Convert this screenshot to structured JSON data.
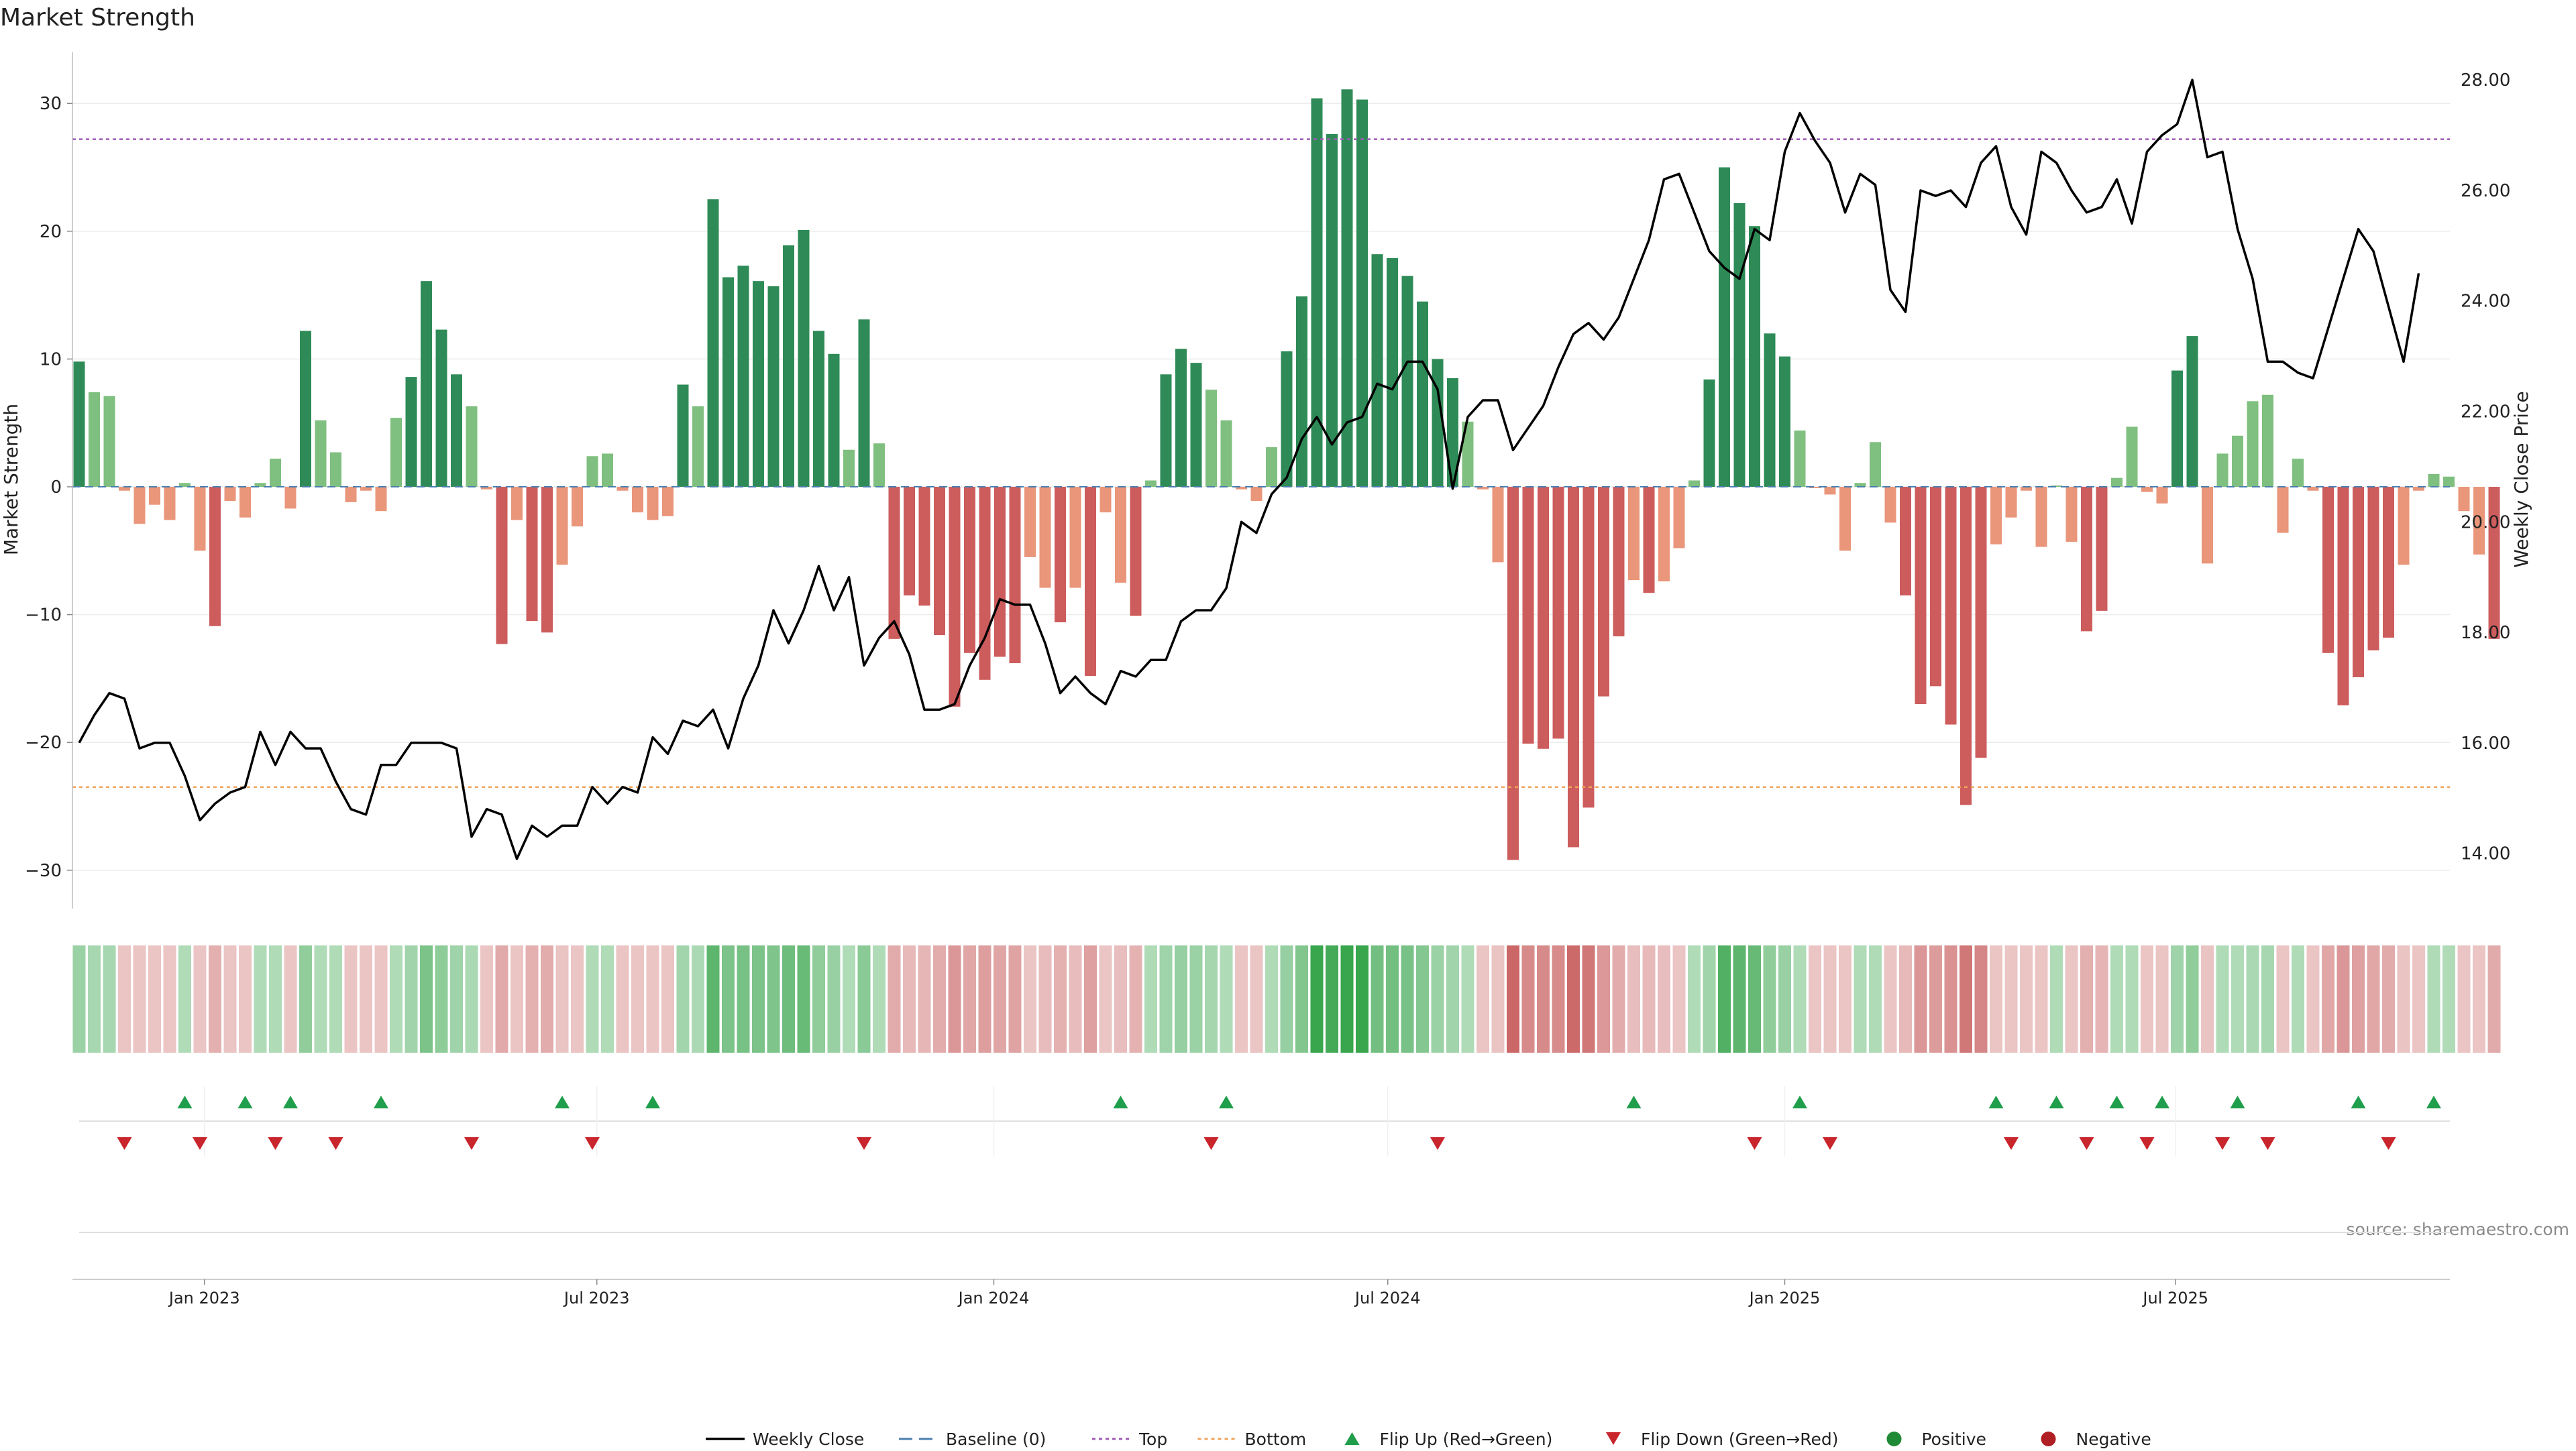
{
  "chart_data": {
    "type": "bar",
    "title": "Market Strength",
    "ylabel_left": "Market Strength",
    "ylabel_right": "Weekly Close Price",
    "source": "source: sharemaestro.com",
    "ylim_left": [
      -33,
      34
    ],
    "ylim_right": [
      13,
      28.5
    ],
    "yticks_left": [
      {
        "v": 30,
        "t": "30"
      },
      {
        "v": 20,
        "t": "20"
      },
      {
        "v": 10,
        "t": "10"
      },
      {
        "v": 0,
        "t": "0"
      },
      {
        "v": -10,
        "t": "−10"
      },
      {
        "v": -20,
        "t": "−20"
      },
      {
        "v": -30,
        "t": "−30"
      }
    ],
    "yticks_right": [
      {
        "v": 28,
        "t": "28.00"
      },
      {
        "v": 26,
        "t": "26.00"
      },
      {
        "v": 24,
        "t": "24.00"
      },
      {
        "v": 22,
        "t": "22.00"
      },
      {
        "v": 20,
        "t": "20.00"
      },
      {
        "v": 18,
        "t": "18.00"
      },
      {
        "v": 16,
        "t": "16.00"
      },
      {
        "v": 14,
        "t": "14.00"
      }
    ],
    "xticks": [
      {
        "i": 8.3,
        "t": "Jan 2023"
      },
      {
        "i": 34.3,
        "t": "Jul 2023"
      },
      {
        "i": 60.6,
        "t": "Jan 2024"
      },
      {
        "i": 86.7,
        "t": "Jul 2024"
      },
      {
        "i": 113,
        "t": "Jan 2025"
      },
      {
        "i": 138.9,
        "t": "Jul 2025"
      }
    ],
    "top_level": 27.2,
    "bottom_level": -23.5,
    "strength": [
      9.8,
      7.4,
      7.1,
      -0.3,
      -2.9,
      -1.4,
      -2.6,
      0.3,
      -5,
      -10.9,
      -1.1,
      -2.4,
      0.3,
      2.2,
      -1.7,
      12.2,
      5.2,
      2.7,
      -1.2,
      -0.3,
      -1.9,
      5.4,
      8.6,
      16.1,
      12.3,
      8.8,
      6.3,
      -0.2,
      -12.3,
      -2.6,
      -10.5,
      -11.4,
      -6.1,
      -3.1,
      2.4,
      2.6,
      -0.3,
      -2,
      -2.6,
      -2.3,
      8,
      6.3,
      22.5,
      16.4,
      17.3,
      16.1,
      15.7,
      18.9,
      20.1,
      12.2,
      10.4,
      2.9,
      13.1,
      3.4,
      -11.9,
      -8.5,
      -9.3,
      -11.6,
      -17.2,
      -13,
      -15.1,
      -13.3,
      -13.8,
      -5.5,
      -7.9,
      -10.6,
      -7.9,
      -14.8,
      -2,
      -7.5,
      -10.1,
      0.5,
      8.8,
      10.8,
      9.7,
      7.6,
      5.2,
      -0.2,
      -1.1,
      3.1,
      10.6,
      14.9,
      30.4,
      27.6,
      31.1,
      30.3,
      18.2,
      17.9,
      16.5,
      14.5,
      10,
      8.5,
      5.1,
      -0.2,
      -5.9,
      -29.2,
      -20.1,
      -20.5,
      -19.7,
      -28.2,
      -25.1,
      -16.4,
      -11.7,
      -7.3,
      -8.3,
      -7.4,
      -4.8,
      0.5,
      8.4,
      25,
      22.2,
      20.4,
      12,
      10.2,
      4.4,
      -0.1,
      -0.6,
      -5,
      0.3,
      3.5,
      -2.8,
      -8.5,
      -17,
      -15.6,
      -18.6,
      -24.9,
      -21.2,
      -4.5,
      -2.4,
      -0.3,
      -4.7,
      0.1,
      -4.3,
      -11.3,
      -9.7,
      0.7,
      4.7,
      -0.4,
      -1.3,
      9.1,
      11.8,
      -6,
      2.6,
      4,
      6.7,
      7.2,
      -3.6,
      2.2,
      -0.3,
      -13,
      -17.1,
      -14.9,
      -12.8,
      -11.8,
      -6.1,
      -0.3,
      1,
      0.8,
      -1.9,
      -5.3,
      -11.9
    ],
    "close": [
      16.0,
      16.5,
      16.9,
      16.8,
      15.9,
      16.0,
      16.0,
      15.4,
      14.6,
      14.9,
      15.1,
      15.2,
      16.2,
      15.6,
      16.2,
      15.9,
      15.9,
      15.3,
      14.8,
      14.7,
      15.6,
      15.6,
      16.0,
      16.0,
      16.0,
      15.9,
      14.3,
      14.8,
      14.7,
      13.9,
      14.5,
      14.3,
      14.5,
      14.5,
      15.2,
      14.9,
      15.2,
      15.1,
      16.1,
      15.8,
      16.4,
      16.3,
      16.6,
      15.9,
      16.8,
      17.4,
      18.4,
      17.8,
      18.4,
      19.2,
      18.4,
      19.0,
      17.4,
      17.9,
      18.2,
      17.6,
      16.6,
      16.6,
      16.7,
      17.4,
      17.9,
      18.6,
      18.5,
      18.5,
      17.8,
      16.9,
      17.2,
      16.9,
      16.7,
      17.3,
      17.2,
      17.5,
      17.5,
      18.2,
      18.4,
      18.4,
      18.8,
      20.0,
      19.8,
      20.5,
      20.8,
      21.5,
      21.9,
      21.4,
      21.8,
      21.9,
      22.5,
      22.4,
      22.9,
      22.9,
      22.4,
      20.6,
      21.9,
      22.2,
      22.2,
      21.3,
      21.7,
      22.1,
      22.8,
      23.4,
      23.6,
      23.3,
      23.7,
      24.4,
      25.1,
      26.2,
      26.3,
      25.6,
      24.9,
      24.6,
      24.4,
      25.3,
      25.1,
      26.7,
      27.4,
      26.9,
      26.5,
      25.6,
      26.3,
      26.1,
      24.2,
      23.8,
      26.0,
      25.9,
      26.0,
      25.7,
      26.5,
      26.8,
      25.7,
      25.2,
      26.7,
      26.5,
      26.0,
      25.6,
      25.7,
      26.2,
      25.4,
      26.7,
      27.0,
      27.2,
      28.0,
      26.6,
      26.7,
      25.3,
      24.4,
      22.9,
      22.9,
      22.7,
      22.6,
      23.5,
      24.4,
      25.3,
      24.9,
      23.9,
      22.9,
      24.5
    ],
    "flip_up": [
      7,
      11,
      14,
      20,
      32,
      38,
      69,
      76,
      103,
      114,
      127,
      131,
      135,
      138,
      143,
      151,
      156
    ],
    "flip_down": [
      3,
      8,
      13,
      17,
      26,
      34,
      52,
      75,
      90,
      111,
      116,
      128,
      133,
      137,
      142,
      145,
      153
    ],
    "legend": [
      {
        "label": "Weekly Close",
        "kind": "line",
        "color": "#000000"
      },
      {
        "label": "Baseline (0)",
        "kind": "dash",
        "color": "#4a7fb0"
      },
      {
        "label": "Top",
        "kind": "dot",
        "color": "#a05bb5"
      },
      {
        "label": "Bottom",
        "kind": "dot",
        "color": "#f0a35a"
      },
      {
        "label": "Flip Up (Red→Green)",
        "kind": "tri-up",
        "color": "#1f9e4b"
      },
      {
        "label": "Flip Down (Green→Red)",
        "kind": "tri-down",
        "color": "#c9252c"
      },
      {
        "label": "Positive",
        "kind": "circle",
        "color": "#1f8a35"
      },
      {
        "label": "Negative",
        "kind": "circle",
        "color": "#b01f24"
      }
    ],
    "colors": {
      "pos_strong": "#2e8b57",
      "pos_light": "#7fbf7f",
      "neg_strong": "#cd5c5c",
      "neg_light": "#e9967a",
      "close_line": "#000000",
      "top_line": "#a05bb5",
      "bottom_line": "#f0a35a",
      "baseline": "#4a7fb0"
    }
  }
}
